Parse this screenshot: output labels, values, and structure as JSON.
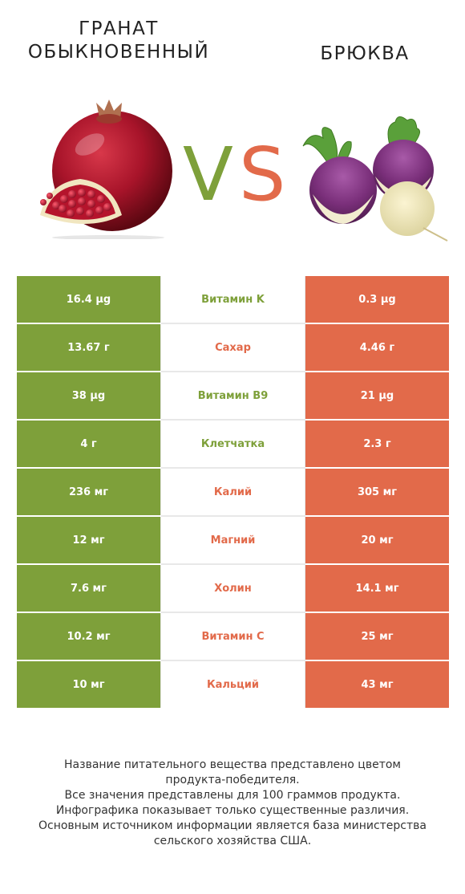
{
  "header": {
    "left_title": "ГРАНАТ\nОБЫКНОВЕННЫЙ",
    "right_title": "БРЮКВА",
    "vs_v": "V",
    "vs_s": "S"
  },
  "colors": {
    "left": "#7ea03a",
    "right": "#e26a4a"
  },
  "images": {
    "left": "pomegranate-image",
    "right": "turnip-image"
  },
  "rows": [
    {
      "left": "16.4 µg",
      "nutrient": "Витамин K",
      "right": "0.3 µg",
      "winner": "left"
    },
    {
      "left": "13.67 г",
      "nutrient": "Сахар",
      "right": "4.46 г",
      "winner": "right"
    },
    {
      "left": "38 µg",
      "nutrient": "Витамин B9",
      "right": "21 µg",
      "winner": "left"
    },
    {
      "left": "4 г",
      "nutrient": "Клетчатка",
      "right": "2.3 г",
      "winner": "left"
    },
    {
      "left": "236 мг",
      "nutrient": "Калий",
      "right": "305 мг",
      "winner": "right"
    },
    {
      "left": "12 мг",
      "nutrient": "Магний",
      "right": "20 мг",
      "winner": "right"
    },
    {
      "left": "7.6 мг",
      "nutrient": "Холин",
      "right": "14.1 мг",
      "winner": "right"
    },
    {
      "left": "10.2 мг",
      "nutrient": "Витамин C",
      "right": "25 мг",
      "winner": "right"
    },
    {
      "left": "10 мг",
      "nutrient": "Кальций",
      "right": "43 мг",
      "winner": "right"
    }
  ],
  "footer": {
    "lines": [
      "Название питательного вещества представлено цветом",
      "продукта-победителя.",
      "Все значения представлены для 100 граммов продукта.",
      "Инфографика показывает только существенные различия.",
      "Основным источником информации является база министерства",
      "сельского хозяйства США."
    ]
  }
}
